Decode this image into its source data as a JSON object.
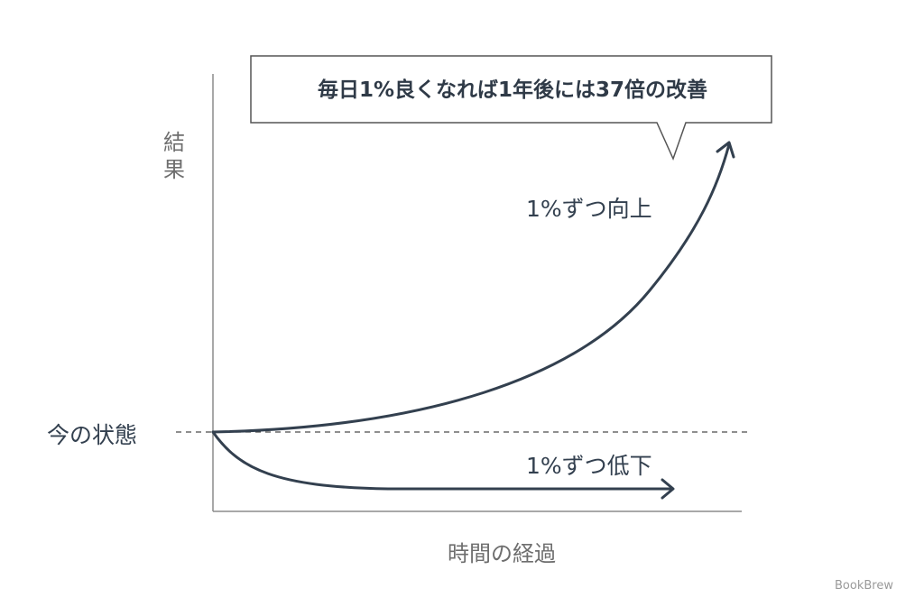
{
  "callout": {
    "text": "毎日1%良くなれば1年後には37倍の改善"
  },
  "axes": {
    "y_label": [
      "結",
      "果"
    ],
    "x_label": "時間の経過",
    "baseline_label": "今の状態"
  },
  "curves": {
    "improve_label": "1%ずつ向上",
    "decline_label": "1%ずつ低下"
  },
  "brand": "BookBrew",
  "colors": {
    "curve": "#33404f",
    "axis": "#8c8c8c",
    "baseline": "#4a4a4a",
    "callout_border": "#555555"
  }
}
